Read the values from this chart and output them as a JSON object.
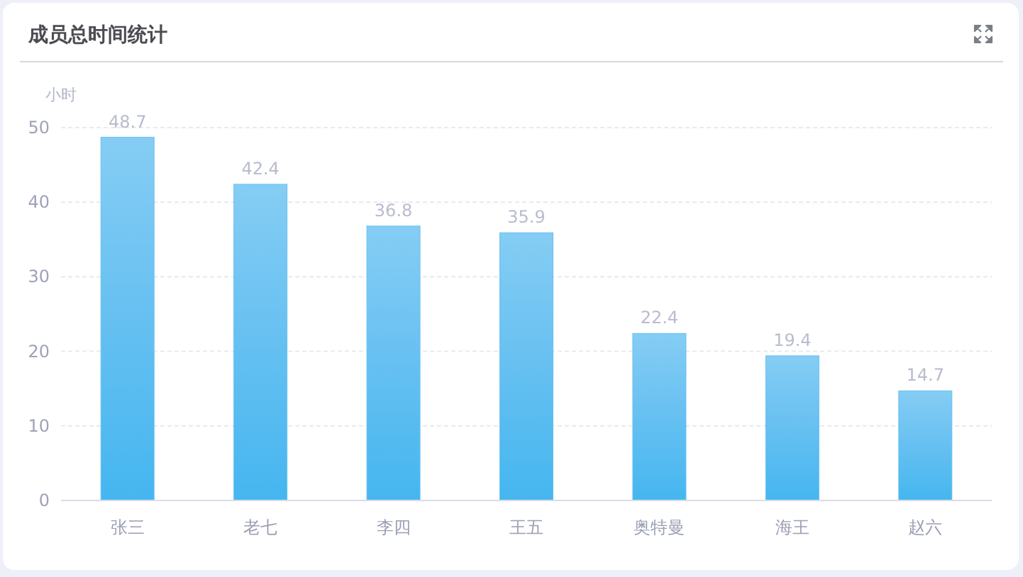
{
  "chart_data": {
    "type": "bar",
    "title": "成员总时间统计",
    "ylabel": "小时",
    "categories": [
      "张三",
      "老七",
      "李四",
      "王五",
      "奥特曼",
      "海王",
      "赵六"
    ],
    "values": [
      48.7,
      42.4,
      36.8,
      35.9,
      22.4,
      19.4,
      14.7
    ],
    "color": "#66c0f1",
    "ylim": [
      0,
      50
    ],
    "yticks": [
      0,
      10,
      20,
      30,
      40,
      50
    ],
    "grid": "y",
    "data_labels": true
  }
}
